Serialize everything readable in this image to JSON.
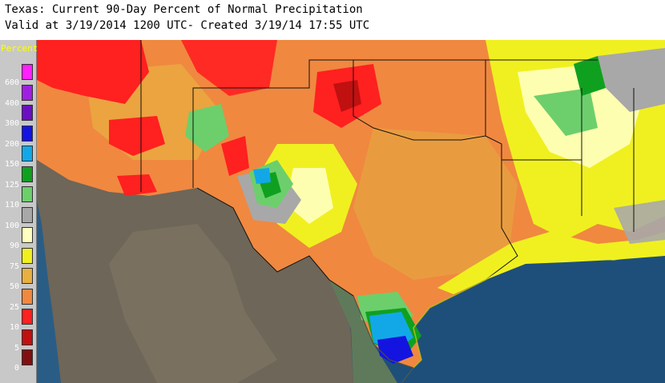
{
  "title": {
    "line1": "Texas: Current 90-Day Percent of Normal Precipitation",
    "line2": "Valid at 3/19/2014 1200 UTC- Created 3/19/14 17:55 UTC"
  },
  "legend": {
    "title": "Percent",
    "bins": [
      {
        "label": "600",
        "color": "#ff20ff"
      },
      {
        "label": "400",
        "color": "#a020e0"
      },
      {
        "label": "300",
        "color": "#6a10c0"
      },
      {
        "label": "200",
        "color": "#1414e0"
      },
      {
        "label": "150",
        "color": "#12a8e8"
      },
      {
        "label": "125",
        "color": "#10a020"
      },
      {
        "label": "110",
        "color": "#6ccf6c"
      },
      {
        "label": "100",
        "color": "#a8a8a8"
      },
      {
        "label": "90",
        "color": "#ffffc0"
      },
      {
        "label": "75",
        "color": "#f0f020"
      },
      {
        "label": "50",
        "color": "#e8b040"
      },
      {
        "label": "25",
        "color": "#f08840"
      },
      {
        "label": "10",
        "color": "#ff2020"
      },
      {
        "label": "5",
        "color": "#c01010"
      },
      {
        "label": "0",
        "color": "#801010"
      }
    ]
  },
  "map": {
    "region": "Texas",
    "colors": {
      "gulf": "#1e4f7a",
      "pacific": "#2a5d85",
      "mexico_terrain": "#6e6658",
      "mexico_lowland": "#5f7a5a",
      "border_line": "#111111"
    }
  }
}
